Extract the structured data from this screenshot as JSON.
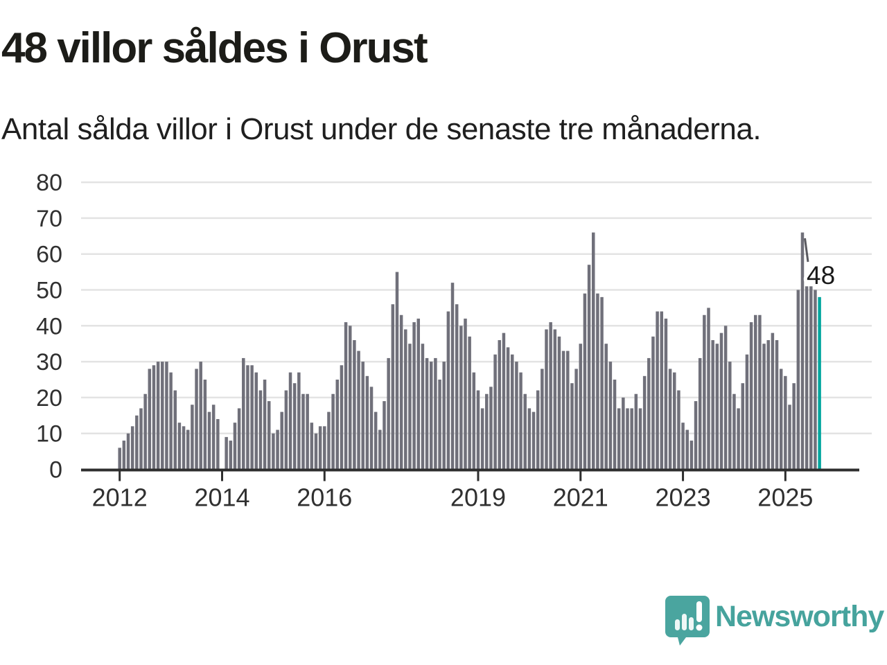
{
  "header": {
    "title": "48 villor såldes i Orust",
    "subtitle": "Antal sålda villor i Orust under de senaste tre månaderna."
  },
  "annotation": {
    "last_value_label": "48"
  },
  "logo": {
    "text": "Newsworthy",
    "icon": "newsworthy-speech-bubble-chart-icon"
  },
  "colors": {
    "bar": "#70707A",
    "highlight": "#00A69E",
    "gridline": "#E3E3E3",
    "axis": "#2E2E2E",
    "axis_text": "#303030",
    "title_text": "#1C1C18",
    "logo_teal": "#4AA59F",
    "logo_text_teal": "#46A39D",
    "annotation_text": "#1A1A1A"
  },
  "chart_data": {
    "type": "bar",
    "title": "48 villor såldes i Orust",
    "subtitle": "Antal sålda villor i Orust under de senaste tre månaderna.",
    "xlabel": "",
    "ylabel": "",
    "ylim": [
      0,
      80
    ],
    "y_ticks": [
      0,
      10,
      20,
      30,
      40,
      50,
      60,
      70,
      80
    ],
    "grid": "horizontal",
    "legend_position": "none",
    "start_month": "2012-01",
    "frequency": "monthly",
    "x_ticks": [
      {
        "label": "2012",
        "month_index": 0
      },
      {
        "label": "2014",
        "month_index": 24
      },
      {
        "label": "2016",
        "month_index": 48
      },
      {
        "label": "2019",
        "month_index": 84
      },
      {
        "label": "2021",
        "month_index": 108
      },
      {
        "label": "2023",
        "month_index": 132
      },
      {
        "label": "2025",
        "month_index": 156
      }
    ],
    "values": [
      6,
      8,
      10,
      12,
      15,
      17,
      21,
      28,
      29,
      30,
      30,
      30,
      27,
      22,
      13,
      12,
      11,
      18,
      28,
      30,
      25,
      16,
      18,
      14,
      0,
      9,
      8,
      13,
      17,
      31,
      29,
      29,
      27,
      22,
      25,
      19,
      10,
      11,
      16,
      22,
      27,
      24,
      27,
      21,
      21,
      13,
      10,
      12,
      12,
      16,
      21,
      25,
      29,
      41,
      40,
      36,
      33,
      30,
      26,
      23,
      16,
      11,
      19,
      31,
      46,
      55,
      43,
      39,
      35,
      41,
      42,
      35,
      31,
      30,
      31,
      25,
      30,
      44,
      52,
      46,
      40,
      42,
      37,
      27,
      22,
      17,
      21,
      23,
      32,
      36,
      38,
      34,
      32,
      30,
      27,
      21,
      17,
      16,
      22,
      28,
      39,
      41,
      39,
      37,
      33,
      33,
      24,
      28,
      35,
      49,
      57,
      66,
      49,
      48,
      35,
      30,
      25,
      17,
      20,
      17,
      17,
      21,
      17,
      26,
      31,
      37,
      44,
      44,
      42,
      28,
      27,
      22,
      13,
      11,
      8,
      19,
      31,
      43,
      45,
      36,
      35,
      38,
      40,
      30,
      21,
      17,
      24,
      32,
      41,
      43,
      43,
      35,
      36,
      38,
      36,
      28,
      26,
      18,
      24,
      50,
      66,
      51,
      51,
      50,
      48
    ],
    "highlight_last": true,
    "last_value": 48
  }
}
